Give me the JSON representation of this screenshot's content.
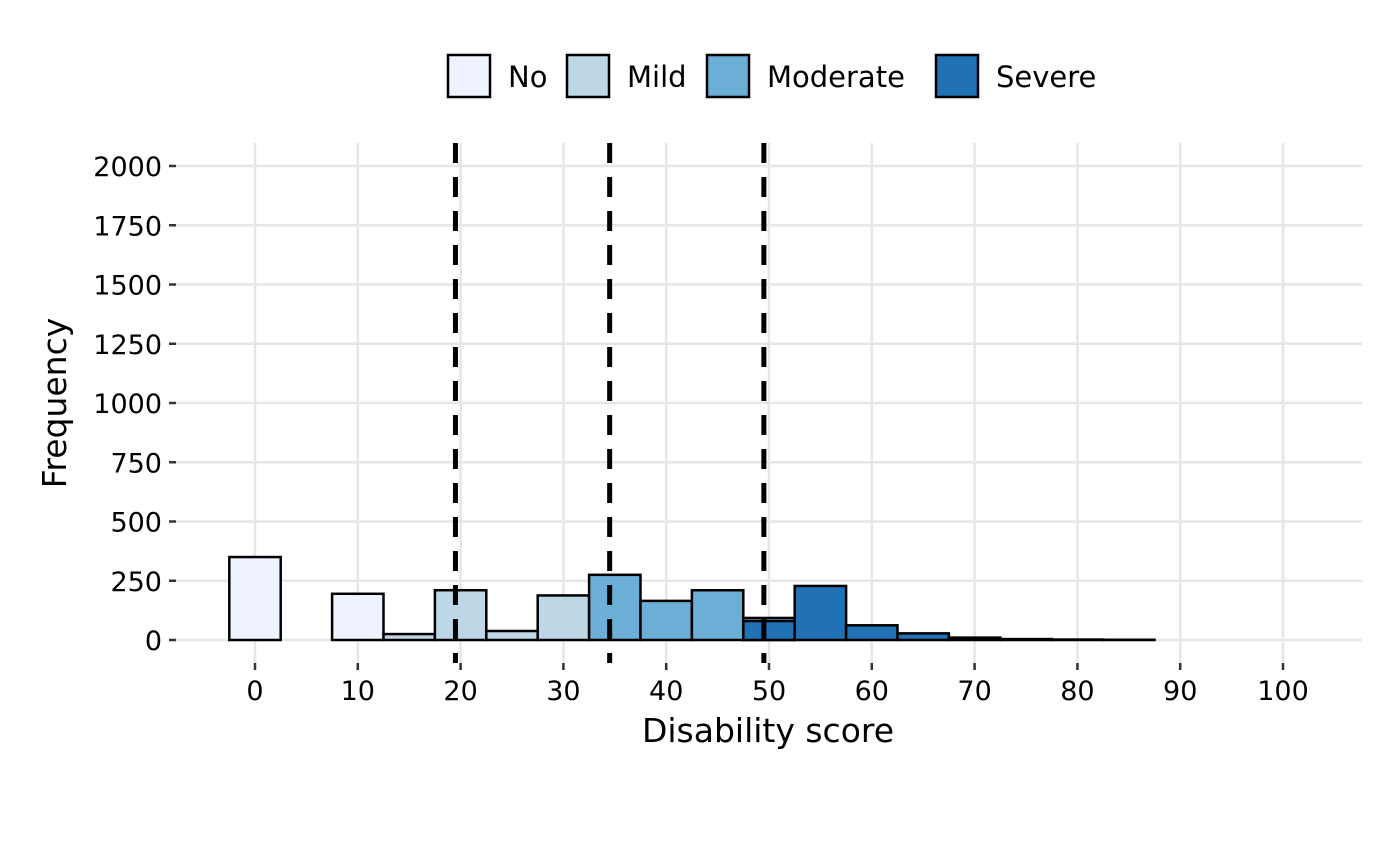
{
  "chart_data": {
    "type": "bar",
    "xlabel": "Disability score",
    "ylabel": "Frequency",
    "xlim": [
      -2.5,
      102.5
    ],
    "ylim": [
      0,
      2000
    ],
    "x_ticks": [
      0,
      10,
      20,
      30,
      40,
      50,
      60,
      70,
      80,
      90,
      100
    ],
    "y_ticks": [
      0,
      250,
      500,
      750,
      1000,
      1250,
      1500,
      1750,
      2000
    ],
    "bin_width": 5,
    "grid": true,
    "legend_position": "top",
    "legend": [
      {
        "name": "No",
        "color": "#eff3ff"
      },
      {
        "name": "Mild",
        "color": "#bdd7e7"
      },
      {
        "name": "Moderate",
        "color": "#6baed6"
      },
      {
        "name": "Severe",
        "color": "#2171b5"
      }
    ],
    "bars": [
      {
        "x": 0,
        "value": 350,
        "category": "No"
      },
      {
        "x": 5,
        "value": 0,
        "category": "No"
      },
      {
        "x": 10,
        "value": 195,
        "category": "No"
      },
      {
        "x": 15,
        "value": 25,
        "category": "Mild"
      },
      {
        "x": 20,
        "value": 210,
        "category": "Mild"
      },
      {
        "x": 25,
        "value": 38,
        "category": "Mild"
      },
      {
        "x": 30,
        "value": 188,
        "category": "Mild"
      },
      {
        "x": 35,
        "value": 275,
        "category": "Moderate"
      },
      {
        "x": 40,
        "value": 165,
        "category": "Moderate"
      },
      {
        "x": 45,
        "value": 210,
        "category": "Moderate"
      },
      {
        "x": 50,
        "value": 93,
        "category": "Moderate"
      },
      {
        "x": 50,
        "value": 80,
        "category": "Severe"
      },
      {
        "x": 55,
        "value": 228,
        "category": "Severe"
      },
      {
        "x": 60,
        "value": 62,
        "category": "Severe"
      },
      {
        "x": 65,
        "value": 28,
        "category": "Severe"
      },
      {
        "x": 70,
        "value": 10,
        "category": "Severe"
      },
      {
        "x": 75,
        "value": 4,
        "category": "Severe"
      },
      {
        "x": 80,
        "value": 2,
        "category": "Severe"
      },
      {
        "x": 85,
        "value": 1,
        "category": "Severe"
      },
      {
        "x": 90,
        "value": 0,
        "category": "Severe"
      },
      {
        "x": 95,
        "value": 0,
        "category": "Severe"
      },
      {
        "x": 100,
        "value": 0,
        "category": "Severe"
      }
    ],
    "thresholds": [
      19.5,
      34.5,
      49.5
    ]
  }
}
